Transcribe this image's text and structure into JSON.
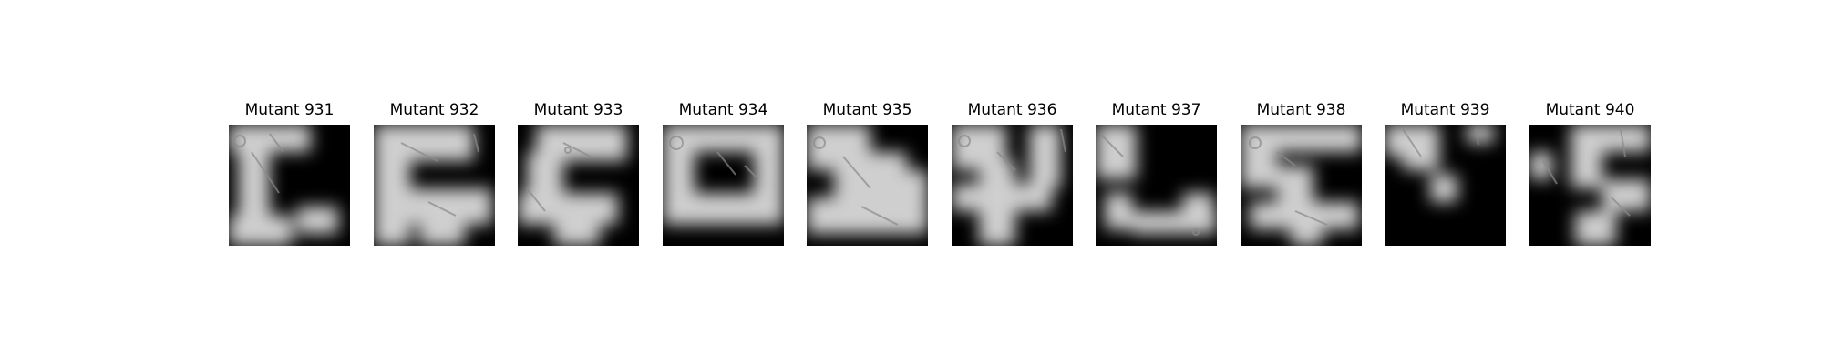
{
  "figure": {
    "panels": [
      {
        "title": "Mutant 931"
      },
      {
        "title": "Mutant 932"
      },
      {
        "title": "Mutant 933"
      },
      {
        "title": "Mutant 934"
      },
      {
        "title": "Mutant 935"
      },
      {
        "title": "Mutant 936"
      },
      {
        "title": "Mutant 937"
      },
      {
        "title": "Mutant 938"
      },
      {
        "title": "Mutant 939"
      },
      {
        "title": "Mutant 940"
      }
    ]
  }
}
